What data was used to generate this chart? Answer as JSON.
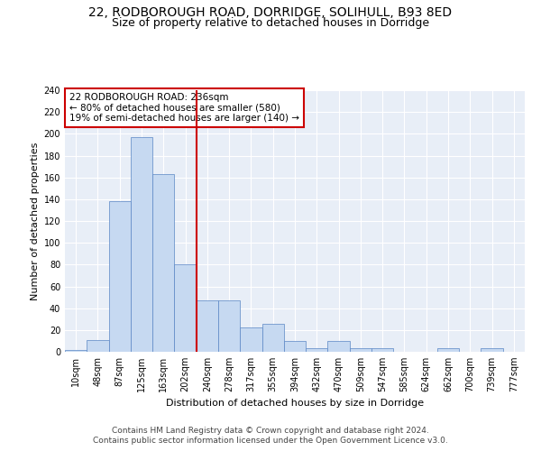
{
  "title_line1": "22, RODBOROUGH ROAD, DORRIDGE, SOLIHULL, B93 8ED",
  "title_line2": "Size of property relative to detached houses in Dorridge",
  "xlabel": "Distribution of detached houses by size in Dorridge",
  "ylabel": "Number of detached properties",
  "bar_labels": [
    "10sqm",
    "48sqm",
    "87sqm",
    "125sqm",
    "163sqm",
    "202sqm",
    "240sqm",
    "278sqm",
    "317sqm",
    "355sqm",
    "394sqm",
    "432sqm",
    "470sqm",
    "509sqm",
    "547sqm",
    "585sqm",
    "624sqm",
    "662sqm",
    "700sqm",
    "739sqm",
    "777sqm"
  ],
  "bar_values": [
    2,
    11,
    138,
    197,
    163,
    80,
    47,
    47,
    22,
    26,
    10,
    3,
    10,
    3,
    3,
    0,
    0,
    3,
    0,
    3,
    0
  ],
  "bar_color": "#c6d9f1",
  "bar_edge_color": "#5a86c5",
  "vline_position": 5.5,
  "vline_color": "#cc0000",
  "annotation_text": "22 RODBOROUGH ROAD: 236sqm\n← 80% of detached houses are smaller (580)\n19% of semi-detached houses are larger (140) →",
  "annotation_box_color": "#cc0000",
  "ylim": [
    0,
    240
  ],
  "yticks": [
    0,
    20,
    40,
    60,
    80,
    100,
    120,
    140,
    160,
    180,
    200,
    220,
    240
  ],
  "footer_line1": "Contains HM Land Registry data © Crown copyright and database right 2024.",
  "footer_line2": "Contains public sector information licensed under the Open Government Licence v3.0.",
  "bg_color": "#e8eef7",
  "fig_bg_color": "#ffffff",
  "title_fontsize": 10,
  "subtitle_fontsize": 9,
  "annotation_fontsize": 7.5,
  "footer_fontsize": 6.5,
  "axis_label_fontsize": 8,
  "tick_fontsize": 7,
  "ylabel_fontsize": 8
}
